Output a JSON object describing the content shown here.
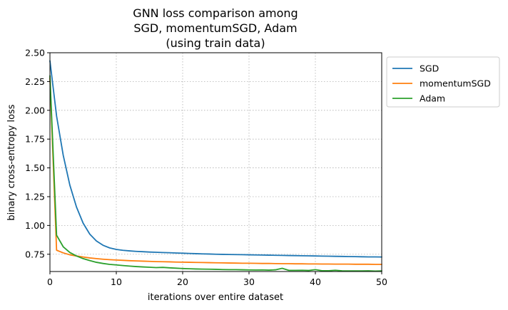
{
  "chart_data": {
    "type": "line",
    "title_lines": [
      "GNN loss comparison among",
      "SGD, momentumSGD, Adam",
      "(using train data)"
    ],
    "xlabel": "iterations over entire dataset",
    "ylabel": "binary cross-entropy loss",
    "xlim": [
      0,
      50
    ],
    "ylim": [
      0.6,
      2.5
    ],
    "x_ticks": [
      0,
      10,
      20,
      30,
      40,
      50
    ],
    "x_tick_labels": [
      "0",
      "10",
      "20",
      "30",
      "40",
      "50"
    ],
    "y_ticks": [
      0.75,
      1.0,
      1.25,
      1.5,
      1.75,
      2.0,
      2.25,
      2.5
    ],
    "y_tick_labels": [
      "0.75",
      "1.00",
      "1.25",
      "1.50",
      "1.75",
      "2.00",
      "2.25",
      "2.50"
    ],
    "grid": true,
    "legend_position": "outside-top-right",
    "series": [
      {
        "name": "SGD",
        "color": "#1f77b4",
        "x": [
          0,
          1,
          2,
          3,
          4,
          5,
          6,
          7,
          8,
          9,
          10,
          11,
          12,
          13,
          14,
          15,
          16,
          17,
          18,
          19,
          20,
          21,
          22,
          23,
          24,
          25,
          26,
          27,
          28,
          29,
          30,
          31,
          32,
          33,
          34,
          35,
          36,
          37,
          38,
          39,
          40,
          41,
          42,
          43,
          44,
          45,
          46,
          47,
          48,
          49,
          50
        ],
        "y": [
          2.43,
          1.95,
          1.61,
          1.35,
          1.16,
          1.02,
          0.925,
          0.865,
          0.828,
          0.805,
          0.792,
          0.784,
          0.779,
          0.775,
          0.772,
          0.769,
          0.767,
          0.765,
          0.763,
          0.761,
          0.759,
          0.757,
          0.755,
          0.753,
          0.752,
          0.75,
          0.749,
          0.748,
          0.747,
          0.746,
          0.745,
          0.744,
          0.743,
          0.742,
          0.741,
          0.74,
          0.739,
          0.738,
          0.737,
          0.736,
          0.735,
          0.734,
          0.733,
          0.732,
          0.731,
          0.73,
          0.729,
          0.728,
          0.727,
          0.727,
          0.726
        ]
      },
      {
        "name": "momentumSGD",
        "color": "#ff7f0e",
        "x": [
          0,
          1,
          2,
          3,
          4,
          5,
          6,
          7,
          8,
          9,
          10,
          11,
          12,
          13,
          14,
          15,
          16,
          17,
          18,
          19,
          20,
          21,
          22,
          23,
          24,
          25,
          26,
          27,
          28,
          29,
          30,
          31,
          32,
          33,
          34,
          35,
          36,
          37,
          38,
          39,
          40,
          41,
          42,
          43,
          44,
          45,
          46,
          47,
          48,
          49,
          50
        ],
        "y": [
          2.28,
          0.785,
          0.762,
          0.745,
          0.735,
          0.726,
          0.718,
          0.712,
          0.707,
          0.703,
          0.7,
          0.697,
          0.694,
          0.692,
          0.69,
          0.688,
          0.686,
          0.685,
          0.684,
          0.682,
          0.681,
          0.68,
          0.679,
          0.678,
          0.677,
          0.676,
          0.675,
          0.674,
          0.673,
          0.672,
          0.672,
          0.671,
          0.67,
          0.67,
          0.669,
          0.668,
          0.668,
          0.667,
          0.667,
          0.666,
          0.666,
          0.665,
          0.665,
          0.664,
          0.664,
          0.664,
          0.663,
          0.663,
          0.663,
          0.662,
          0.662
        ]
      },
      {
        "name": "Adam",
        "color": "#2ca02c",
        "x": [
          0,
          1,
          2,
          3,
          4,
          5,
          6,
          7,
          8,
          9,
          10,
          11,
          12,
          13,
          14,
          15,
          16,
          17,
          18,
          19,
          20,
          21,
          22,
          23,
          24,
          25,
          26,
          27,
          28,
          29,
          30,
          31,
          32,
          33,
          34,
          35,
          36,
          37,
          38,
          39,
          40,
          41,
          42,
          43,
          44,
          45,
          46,
          47,
          48,
          49,
          50
        ],
        "y": [
          2.3,
          0.915,
          0.815,
          0.765,
          0.735,
          0.712,
          0.695,
          0.68,
          0.67,
          0.662,
          0.657,
          0.652,
          0.647,
          0.643,
          0.64,
          0.637,
          0.634,
          0.636,
          0.632,
          0.629,
          0.626,
          0.624,
          0.622,
          0.621,
          0.62,
          0.619,
          0.617,
          0.616,
          0.616,
          0.615,
          0.614,
          0.613,
          0.614,
          0.612,
          0.615,
          0.628,
          0.61,
          0.61,
          0.611,
          0.609,
          0.616,
          0.607,
          0.607,
          0.611,
          0.606,
          0.605,
          0.605,
          0.605,
          0.606,
          0.604,
          0.605
        ]
      }
    ]
  }
}
